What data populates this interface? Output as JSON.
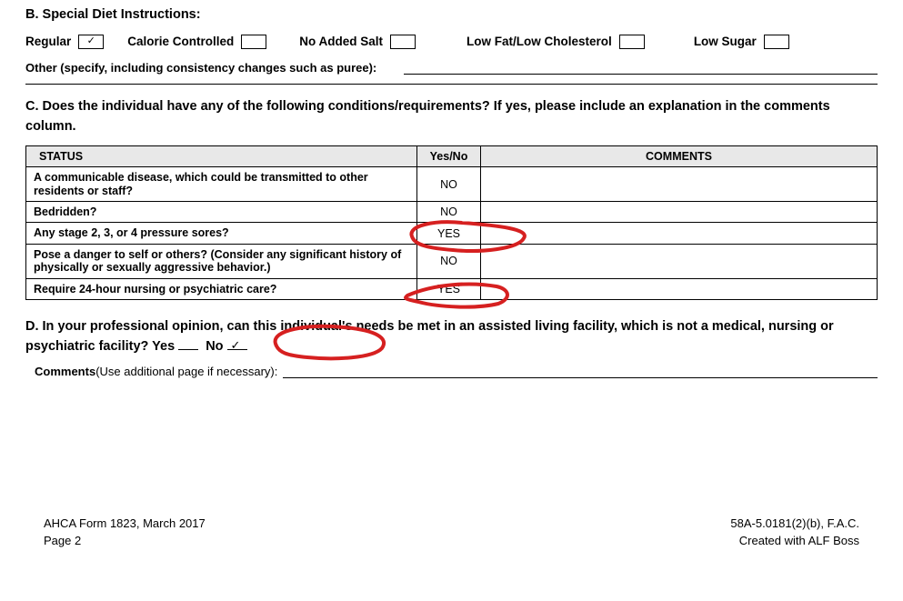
{
  "sectionB": {
    "title": "B. Special Diet Instructions:",
    "options": [
      {
        "label": "Regular",
        "checked": true
      },
      {
        "label": "Calorie Controlled",
        "checked": false
      },
      {
        "label": "No Added Salt",
        "checked": false
      },
      {
        "label": "Low Fat/Low Cholesterol",
        "checked": false
      },
      {
        "label": "Low Sugar",
        "checked": false
      }
    ],
    "other_label": "Other (specify, including consistency changes such as puree):",
    "other_value": ""
  },
  "sectionC": {
    "title": "C. Does the individual have any of the following conditions/requirements? If yes, please include an explanation in the comments column.",
    "headers": {
      "status": "STATUS",
      "yn": "Yes/No",
      "comments": "COMMENTS"
    },
    "rows": [
      {
        "status": "A communicable disease, which could be transmitted to other residents or staff?",
        "yn": "NO",
        "comments": "",
        "highlight": false
      },
      {
        "status": "Bedridden?",
        "yn": "NO",
        "comments": "",
        "highlight": false
      },
      {
        "status": "Any stage 2, 3, or 4 pressure sores?",
        "yn": "YES",
        "comments": "",
        "highlight": true
      },
      {
        "status": "Pose a danger to self or others? (Consider any significant history of physically or sexually aggressive behavior.)",
        "yn": "NO",
        "comments": "",
        "highlight": false
      },
      {
        "status": "Require 24-hour nursing or psychiatric care?",
        "yn": "YES",
        "comments": "",
        "highlight": true
      }
    ],
    "annotation_color": "#d62020",
    "annotation_stroke": 4
  },
  "sectionD": {
    "text_prefix": "D. In your professional opinion, can this individual's needs be met in an assisted living facility, which is not a medical, nursing or psychiatric facility?",
    "yes_label": "Yes",
    "no_label": "No",
    "yes_checked": false,
    "no_checked": true,
    "comments_label": "Comments",
    "comments_hint": " (Use additional page if necessary):",
    "comments_value": "",
    "annotation_color": "#d62020",
    "annotation_stroke": 4
  },
  "footer": {
    "left_line1": "AHCA Form 1823, March 2017",
    "left_line2": "Page 2",
    "right_line1": "58A-5.0181(2)(b), F.A.C.",
    "right_line2": "Created with ALF Boss"
  }
}
